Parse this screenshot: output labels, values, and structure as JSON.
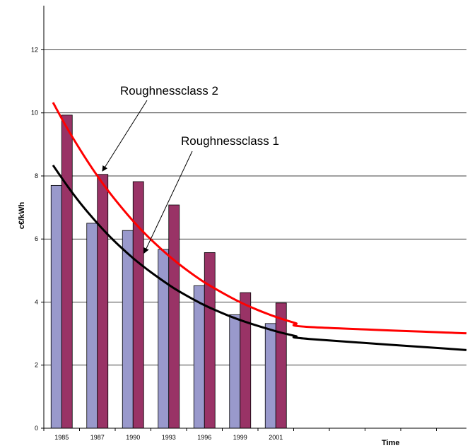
{
  "chart_data": {
    "type": "bar",
    "categories": [
      "1985",
      "1987",
      "1990",
      "1993",
      "1996",
      "1999",
      "2001"
    ],
    "series": [
      {
        "values": [
          7.7,
          6.5,
          6.27,
          5.67,
          4.52,
          3.6,
          3.32
        ],
        "color": "#9999cc"
      },
      {
        "values": [
          9.93,
          8.05,
          7.82,
          7.08,
          5.57,
          4.3,
          3.97
        ],
        "color": "#993366"
      }
    ],
    "lines": [
      {
        "name": "Roughnessclass 2",
        "color": "#ff0000",
        "y": [
          10.33,
          9.55,
          8.84,
          8.18,
          7.58,
          7.04,
          6.54,
          6.09,
          5.69,
          5.32,
          4.99,
          4.69,
          4.43,
          4.19,
          3.97,
          3.78,
          3.61,
          3.46,
          3.33,
          3.21,
          3.01
        ]
      },
      {
        "name": "Roughnessclass 1",
        "color": "#000000",
        "y": [
          8.34,
          7.72,
          7.15,
          6.64,
          6.17,
          5.75,
          5.37,
          5.03,
          4.72,
          4.43,
          4.18,
          3.95,
          3.75,
          3.57,
          3.41,
          3.27,
          3.14,
          3.02,
          2.92,
          2.83,
          2.48
        ]
      }
    ],
    "yticks": [
      0,
      2,
      4,
      6,
      8,
      10,
      12
    ],
    "ylim": [
      0,
      13.4
    ],
    "xlabel": "Time",
    "ylabel": "c€/kWh",
    "annotations": [
      {
        "text": "Roughnessclass 2"
      },
      {
        "text": "Roughnessclass 1"
      }
    ],
    "grid": "horizontal",
    "legend": "none"
  }
}
